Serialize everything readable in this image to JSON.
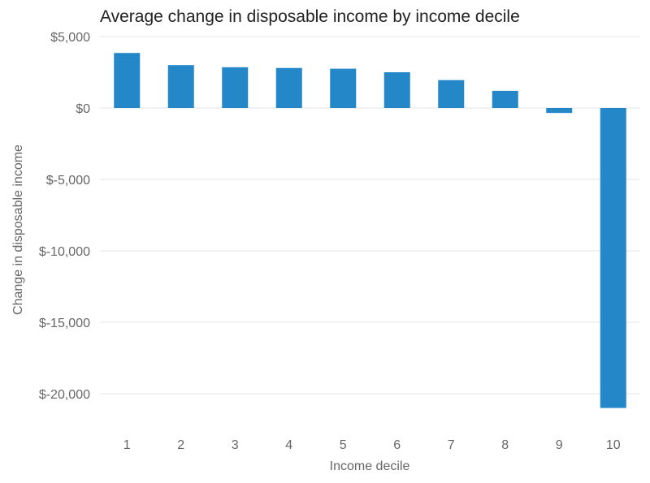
{
  "chart_data": {
    "type": "bar",
    "title": "Average change in disposable income by income decile",
    "xlabel": "Income decile",
    "ylabel": "Change in disposable income",
    "categories": [
      "1",
      "2",
      "3",
      "4",
      "5",
      "6",
      "7",
      "8",
      "9",
      "10"
    ],
    "values": [
      3850,
      3000,
      2850,
      2800,
      2750,
      2500,
      1950,
      1200,
      -350,
      -21000
    ],
    "ylim": [
      -21500,
      5000
    ],
    "yticks": [
      5000,
      0,
      -5000,
      -10000,
      -15000,
      -20000
    ],
    "ytick_labels": [
      "$5,000",
      "$0",
      "$-5,000",
      "$-10,000",
      "$-15,000",
      "$-20,000"
    ],
    "grid": true,
    "legend": "none",
    "bar_color": "#2387c8"
  }
}
